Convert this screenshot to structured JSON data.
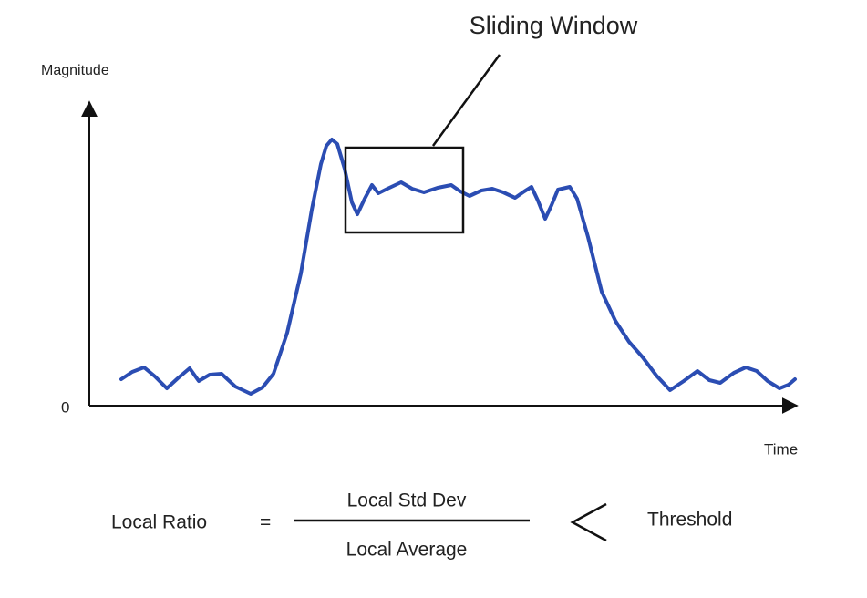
{
  "diagram": {
    "callout": "Sliding Window",
    "y_axis_label": "Magnitude",
    "origin_label": "0",
    "x_axis_label": "Time",
    "formula": {
      "lhs": "Local Ratio",
      "equals": "=",
      "numerator": "Local Std Dev",
      "denominator": "Local Average",
      "rhs": "Threshold"
    }
  }
}
